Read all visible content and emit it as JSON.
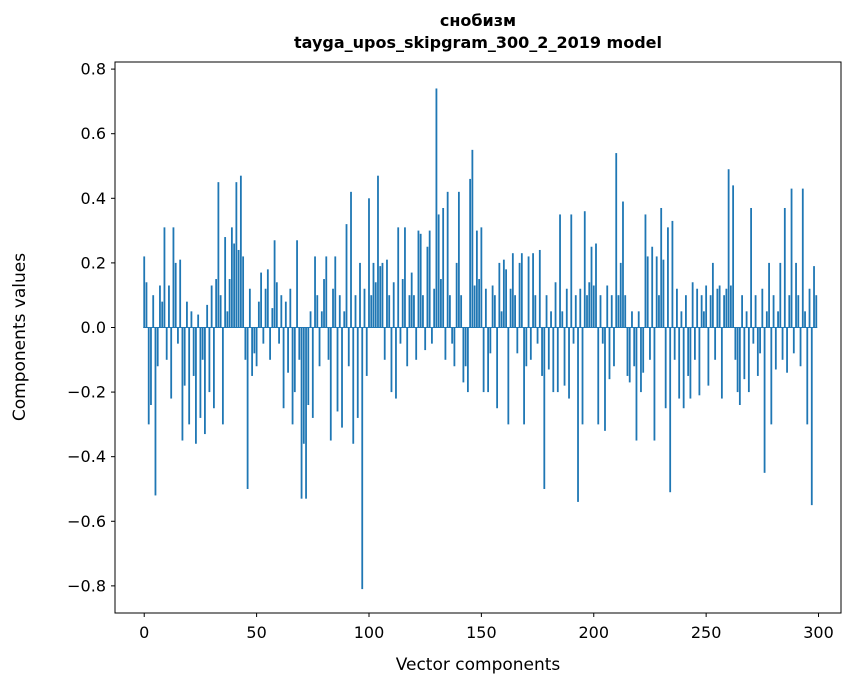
{
  "chart_data": {
    "type": "bar",
    "title_line1": "снобизм",
    "title_line2": "tayga_upos_skipgram_300_2_2019 model",
    "xlabel": "Vector components",
    "ylabel": "Components values",
    "xlim": [
      -13,
      310
    ],
    "ylim": [
      -0.884,
      0.822
    ],
    "x_ticks": [
      0,
      50,
      100,
      150,
      200,
      250,
      300
    ],
    "y_ticks": [
      -0.8,
      -0.6,
      -0.4,
      -0.2,
      0.0,
      0.2,
      0.4,
      0.6,
      0.8
    ],
    "legend": "none",
    "grid": false,
    "colors": {
      "bar": "#1f77b4",
      "axis": "#000000",
      "background": "#ffffff"
    },
    "values": [
      0.22,
      0.14,
      -0.3,
      -0.24,
      0.1,
      -0.52,
      -0.12,
      0.13,
      0.08,
      0.31,
      -0.1,
      0.13,
      -0.22,
      0.31,
      0.2,
      -0.05,
      0.21,
      -0.35,
      -0.18,
      0.08,
      -0.3,
      0.05,
      -0.15,
      -0.36,
      0.04,
      -0.28,
      -0.1,
      -0.33,
      0.07,
      -0.2,
      0.13,
      -0.25,
      0.15,
      0.45,
      0.1,
      -0.3,
      0.28,
      0.05,
      0.15,
      0.31,
      0.26,
      0.45,
      0.24,
      0.47,
      0.22,
      -0.1,
      -0.5,
      0.12,
      -0.15,
      -0.08,
      -0.12,
      0.08,
      0.17,
      -0.05,
      0.12,
      0.18,
      -0.1,
      0.06,
      0.27,
      0.14,
      -0.05,
      0.1,
      -0.25,
      0.08,
      -0.14,
      0.12,
      -0.3,
      -0.2,
      0.27,
      -0.1,
      -0.53,
      -0.36,
      -0.53,
      -0.24,
      0.05,
      -0.28,
      0.22,
      0.1,
      -0.12,
      0.05,
      0.15,
      0.22,
      -0.1,
      -0.35,
      0.12,
      0.22,
      -0.26,
      0.1,
      -0.31,
      0.05,
      0.32,
      -0.12,
      0.42,
      -0.36,
      0.1,
      -0.28,
      0.2,
      -0.81,
      0.12,
      -0.15,
      0.4,
      0.1,
      0.2,
      0.14,
      0.47,
      0.19,
      0.2,
      -0.1,
      0.21,
      0.1,
      -0.2,
      0.14,
      -0.22,
      0.31,
      -0.05,
      0.15,
      0.31,
      -0.12,
      0.1,
      0.17,
      0.1,
      -0.1,
      0.3,
      0.29,
      0.1,
      -0.07,
      0.25,
      0.3,
      -0.05,
      0.12,
      0.74,
      0.35,
      0.15,
      0.37,
      -0.1,
      0.42,
      0.1,
      -0.05,
      -0.12,
      0.2,
      0.42,
      0.1,
      -0.17,
      -0.12,
      -0.2,
      0.46,
      0.55,
      0.13,
      0.3,
      0.15,
      0.31,
      -0.2,
      0.12,
      -0.2,
      -0.08,
      0.13,
      0.1,
      -0.25,
      0.2,
      0.05,
      0.21,
      0.18,
      -0.3,
      0.12,
      0.23,
      0.1,
      -0.08,
      0.2,
      0.23,
      -0.3,
      -0.12,
      0.22,
      -0.1,
      0.23,
      0.1,
      -0.05,
      0.24,
      -0.15,
      -0.5,
      0.1,
      -0.13,
      0.05,
      -0.2,
      0.14,
      -0.2,
      0.35,
      0.05,
      -0.18,
      0.12,
      -0.22,
      0.35,
      -0.05,
      0.1,
      -0.54,
      0.12,
      -0.3,
      0.36,
      0.1,
      0.14,
      0.25,
      0.13,
      0.26,
      -0.3,
      0.1,
      -0.05,
      -0.32,
      0.13,
      -0.16,
      0.1,
      -0.12,
      0.54,
      0.1,
      0.2,
      0.39,
      0.1,
      -0.15,
      -0.17,
      0.05,
      -0.12,
      -0.35,
      0.05,
      -0.2,
      -0.14,
      0.35,
      0.22,
      -0.1,
      0.25,
      -0.35,
      0.22,
      0.1,
      0.37,
      0.21,
      -0.25,
      0.31,
      -0.51,
      0.33,
      -0.1,
      0.12,
      -0.22,
      0.05,
      -0.25,
      0.1,
      -0.15,
      -0.22,
      0.14,
      -0.1,
      0.12,
      -0.21,
      0.1,
      0.05,
      0.13,
      -0.18,
      0.1,
      0.2,
      -0.1,
      0.12,
      0.13,
      -0.22,
      0.1,
      0.12,
      0.49,
      0.13,
      0.44,
      -0.1,
      -0.2,
      -0.24,
      0.1,
      -0.16,
      0.05,
      -0.2,
      0.37,
      -0.05,
      0.1,
      -0.15,
      -0.08,
      0.12,
      -0.45,
      0.05,
      0.2,
      -0.3,
      0.1,
      -0.13,
      0.05,
      0.2,
      -0.1,
      0.37,
      -0.14,
      0.1,
      0.43,
      -0.08,
      0.2,
      0.1,
      -0.12,
      0.43,
      0.05,
      -0.3,
      0.12,
      -0.55,
      0.19,
      0.1
    ]
  }
}
